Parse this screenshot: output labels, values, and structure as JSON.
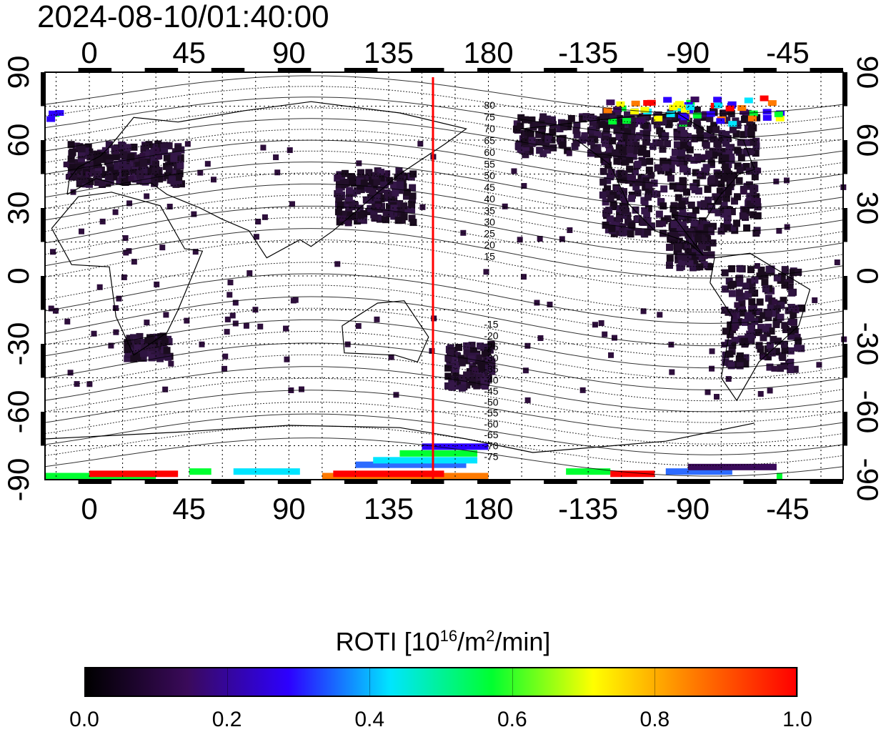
{
  "title": "2024-08-10/01:40:00",
  "map": {
    "lon_ticks_top": [
      "0",
      "45",
      "90",
      "135",
      "180",
      "-135",
      "-90",
      "-45"
    ],
    "lon_ticks_bottom": [
      "0",
      "45",
      "90",
      "135",
      "180",
      "-135",
      "-90",
      "-45"
    ],
    "lat_ticks_left": [
      "90",
      "60",
      "30",
      "0",
      "-30",
      "-60",
      "-90"
    ],
    "lat_ticks_right": [
      "90",
      "60",
      "30",
      "0",
      "-30",
      "-60",
      "-90"
    ],
    "lon_range": [
      -20,
      340
    ],
    "lat_range": [
      -90,
      90
    ],
    "grid": true,
    "terminator_longitude": 155,
    "terminator_color": "#ff0000",
    "contour_labels_north": [
      "80",
      "75",
      "70",
      "65",
      "60",
      "55",
      "50",
      "45",
      "40",
      "35",
      "30",
      "25",
      "20",
      "15"
    ],
    "contour_labels_south": [
      "-15",
      "-20",
      "-25",
      "-30",
      "-35",
      "-40",
      "-45",
      "-50",
      "-55",
      "-60",
      "-65",
      "-70",
      "-75"
    ]
  },
  "colorbar": {
    "label": "ROTI  [10",
    "label_sup1": "16",
    "label_mid": "/m",
    "label_sup2": "2",
    "label_end": "/min]",
    "ticks": [
      "0.0",
      "0.2",
      "0.4",
      "0.6",
      "0.8",
      "1.0"
    ],
    "range": [
      0.0,
      1.0
    ],
    "colors": [
      "#000000",
      "#3a0a5a",
      "#2d00ff",
      "#00e5ff",
      "#00ff30",
      "#ffff00",
      "#ff7a00",
      "#ff0000"
    ]
  }
}
